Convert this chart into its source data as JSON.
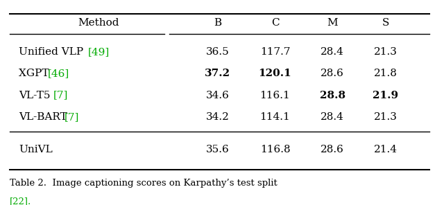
{
  "title": "Table 2.",
  "caption": "Image captioning scores on Karpathy’s test split [22].",
  "caption_ref_color": "#00aa00",
  "columns": [
    "Method",
    "B",
    "C",
    "M",
    "S"
  ],
  "rows": [
    {
      "method": "Unified VLP ",
      "ref": "[49]",
      "ref_color": "#00aa00",
      "B": "36.5",
      "C": "117.7",
      "M": "28.4",
      "S": "21.3",
      "bold": []
    },
    {
      "method": "XGPT ",
      "ref": "[46]",
      "ref_color": "#00aa00",
      "B": "37.2",
      "C": "120.1",
      "M": "28.6",
      "S": "21.8",
      "bold": [
        "B",
        "C"
      ]
    },
    {
      "method": "VL-T5 ",
      "ref": "[7]",
      "ref_color": "#00aa00",
      "B": "34.6",
      "C": "116.1",
      "M": "28.8",
      "S": "21.9",
      "bold": [
        "M",
        "S"
      ]
    },
    {
      "method": "VL-BART ",
      "ref": "[7]",
      "ref_color": "#00aa00",
      "B": "34.2",
      "C": "114.1",
      "M": "28.4",
      "S": "21.3",
      "bold": []
    }
  ],
  "separator_row": {
    "method": "UniVL",
    "ref": "",
    "ref_color": "#000000",
    "B": "35.6",
    "C": "116.8",
    "M": "28.6",
    "S": "21.4",
    "bold": []
  },
  "bg_color": "#ffffff",
  "text_color": "#000000",
  "line_color": "#000000"
}
